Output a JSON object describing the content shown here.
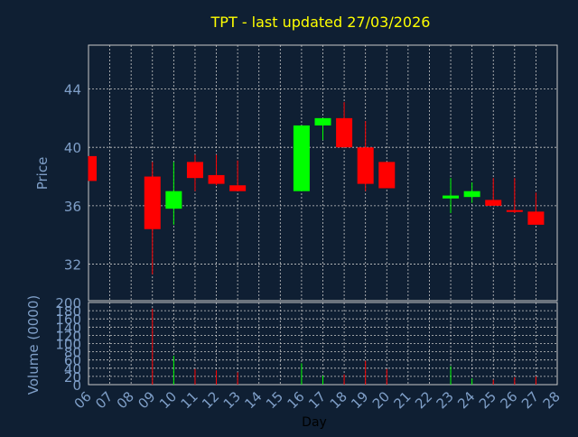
{
  "chart_data": {
    "type": "candlestick",
    "title": "TPT - last updated 27/03/2026",
    "price_axis": {
      "label": "Price",
      "ticks": [
        32,
        36,
        40,
        44
      ],
      "ylim": [
        29.5,
        47.0
      ]
    },
    "volume_axis": {
      "label": "Volume (0000)",
      "ticks": [
        0,
        20,
        40,
        60,
        80,
        100,
        120,
        140,
        160,
        180,
        200
      ],
      "ylim": [
        0,
        200
      ]
    },
    "x_axis": {
      "label": "Day",
      "ticks": [
        "06",
        "07",
        "08",
        "09",
        "10",
        "11",
        "12",
        "13",
        "14",
        "15",
        "16",
        "17",
        "18",
        "19",
        "20",
        "21",
        "22",
        "23",
        "24",
        "25",
        "26",
        "27",
        "28"
      ]
    },
    "grid": true,
    "colors": {
      "background": "#0f1f33",
      "up": "#00ff00",
      "down": "#ff0000",
      "title": "#ffff00",
      "axis_text": "#7f9fc8",
      "grid": "#c8c8c8"
    },
    "candles": [
      {
        "day": "06",
        "open": 39.4,
        "high": 39.4,
        "low": 37.7,
        "close": 37.7
      },
      {
        "day": "09",
        "open": 38.0,
        "high": 39.0,
        "low": 31.3,
        "close": 34.4
      },
      {
        "day": "10",
        "open": 35.8,
        "high": 39.0,
        "low": 34.7,
        "close": 37.0
      },
      {
        "day": "11",
        "open": 39.0,
        "high": 39.5,
        "low": 37.0,
        "close": 37.9
      },
      {
        "day": "12",
        "open": 38.1,
        "high": 39.5,
        "low": 37.4,
        "close": 37.5
      },
      {
        "day": "13",
        "open": 37.4,
        "high": 39.1,
        "low": 37.0,
        "close": 37.0
      },
      {
        "day": "16",
        "open": 37.0,
        "high": 41.5,
        "low": 37.0,
        "close": 41.5
      },
      {
        "day": "17",
        "open": 41.5,
        "high": 42.0,
        "low": 40.5,
        "close": 42.0
      },
      {
        "day": "18",
        "open": 42.0,
        "high": 43.1,
        "low": 40.0,
        "close": 40.0
      },
      {
        "day": "19",
        "open": 40.0,
        "high": 41.8,
        "low": 37.0,
        "close": 37.5
      },
      {
        "day": "20",
        "open": 39.0,
        "high": 39.0,
        "low": 37.2,
        "close": 37.2
      },
      {
        "day": "23",
        "open": 36.5,
        "high": 37.9,
        "low": 35.5,
        "close": 36.7
      },
      {
        "day": "24",
        "open": 36.6,
        "high": 37.6,
        "low": 36.2,
        "close": 37.0
      },
      {
        "day": "25",
        "open": 36.4,
        "high": 37.9,
        "low": 36.0,
        "close": 36.0
      },
      {
        "day": "26",
        "open": 35.7,
        "high": 37.9,
        "low": 35.5,
        "close": 35.6
      },
      {
        "day": "27",
        "open": 35.6,
        "high": 36.9,
        "low": 34.7,
        "close": 34.7
      }
    ],
    "volume": [
      {
        "day": "06",
        "value": 0
      },
      {
        "day": "09",
        "value": 185
      },
      {
        "day": "10",
        "value": 70
      },
      {
        "day": "11",
        "value": 38
      },
      {
        "day": "12",
        "value": 35
      },
      {
        "day": "13",
        "value": 30
      },
      {
        "day": "16",
        "value": 52
      },
      {
        "day": "17",
        "value": 22
      },
      {
        "day": "18",
        "value": 25
      },
      {
        "day": "19",
        "value": 58
      },
      {
        "day": "20",
        "value": 38
      },
      {
        "day": "23",
        "value": 45
      },
      {
        "day": "24",
        "value": 15
      },
      {
        "day": "25",
        "value": 12
      },
      {
        "day": "26",
        "value": 18
      },
      {
        "day": "27",
        "value": 20
      }
    ]
  }
}
